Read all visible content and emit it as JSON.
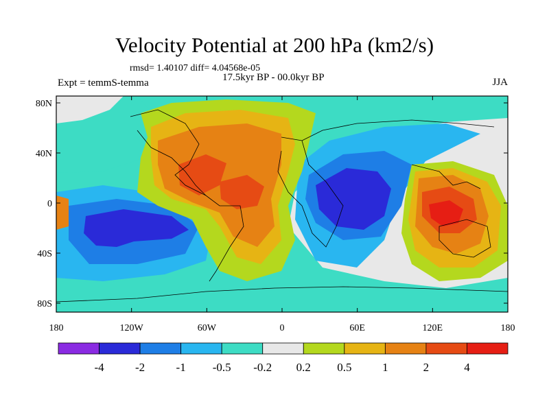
{
  "title": "Velocity Potential at 200 hPa (km2/s)",
  "stats": "rmsd= 1.40107 diff= 4.04568e-05",
  "period": "17.5kyr BP - 00.0kyr BP",
  "experiment": "Expt = temmS-temma",
  "season": "JJA",
  "axes": {
    "x_ticks": [
      "180",
      "120W",
      "60W",
      "0",
      "60E",
      "120E",
      "180"
    ],
    "y_ticks": [
      "80N",
      "40N",
      "0",
      "40S",
      "80S"
    ]
  },
  "colorbar": {
    "colors": [
      "#8a2be2",
      "#2a2ad8",
      "#1e7ee6",
      "#29b6f0",
      "#3ddcc4",
      "#e8e8e8",
      "#b4d81e",
      "#e6b414",
      "#e68214",
      "#e64b14",
      "#e61e14"
    ],
    "labels": [
      "-4",
      "-2",
      "-1",
      "-0.5",
      "-0.2",
      "0.2",
      "0.5",
      "1",
      "2",
      "4"
    ]
  }
}
